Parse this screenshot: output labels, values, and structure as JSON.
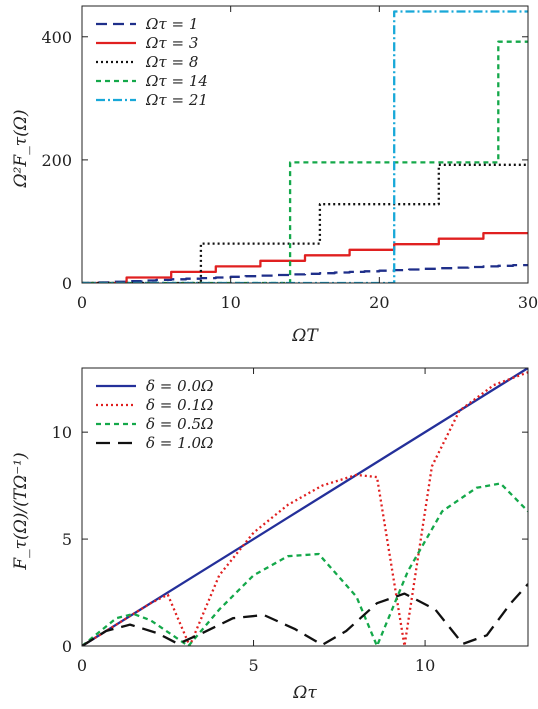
{
  "chart_data": [
    {
      "type": "line",
      "step": true,
      "xlabel": "ΩT",
      "ylabel": "Ω²F_τ(Ω)",
      "xlim": [
        0,
        30
      ],
      "ylim": [
        0,
        450
      ],
      "xticks": [
        0,
        10,
        20,
        30
      ],
      "yticks": [
        0,
        200,
        400
      ],
      "grid": false,
      "legend_position": "top-left",
      "series": [
        {
          "name": "Ωτ = 1",
          "color": "#1f2f8a",
          "dash": "dashed",
          "tau": 1,
          "x": [
            0,
            1,
            2,
            3,
            4,
            5,
            6,
            7,
            8,
            9,
            10,
            11,
            12,
            13,
            14,
            15,
            16,
            17,
            18,
            19,
            20,
            21,
            22,
            23,
            24,
            25,
            26,
            27,
            28,
            29,
            30
          ],
          "y": [
            0,
            1,
            2,
            3,
            4,
            5,
            6,
            7,
            8,
            9,
            10,
            11,
            12,
            13,
            14,
            15,
            16,
            17,
            18,
            19,
            20,
            21,
            22,
            23,
            24,
            25,
            26,
            27,
            28,
            29,
            30
          ]
        },
        {
          "name": "Ωτ = 3",
          "color": "#e02020",
          "dash": "solid",
          "tau": 3,
          "x": [
            0,
            3,
            6,
            9,
            12,
            15,
            18,
            21,
            24,
            27,
            30
          ],
          "y": [
            0,
            9,
            18,
            27,
            36,
            45,
            54,
            63,
            72,
            81,
            81
          ]
        },
        {
          "name": "Ωτ = 8",
          "color": "#111111",
          "dash": "dotted",
          "tau": 8,
          "x": [
            0,
            8,
            16,
            24,
            30
          ],
          "y": [
            0,
            64,
            128,
            192,
            192
          ]
        },
        {
          "name": "Ωτ = 14",
          "color": "#14a84a",
          "dash": "dashed-short",
          "tau": 14,
          "x": [
            0,
            14,
            28,
            30
          ],
          "y": [
            0,
            196,
            392,
            392
          ]
        },
        {
          "name": "Ωτ = 21",
          "color": "#18a8d8",
          "dash": "dashdot",
          "tau": 21,
          "x": [
            0,
            21,
            30
          ],
          "y": [
            0,
            441,
            441
          ]
        }
      ]
    },
    {
      "type": "line",
      "xlabel": "Ωτ",
      "ylabel": "F_τ(Ω)/(TΩ⁻¹)",
      "xlim": [
        0,
        13
      ],
      "ylim": [
        0,
        13
      ],
      "xticks": [
        0,
        5,
        10
      ],
      "yticks": [
        0,
        5,
        10
      ],
      "grid": false,
      "legend_position": "top-left",
      "series": [
        {
          "name": "δ = 0.0Ω",
          "color": "#24309a",
          "dash": "solid",
          "delta": 0.0,
          "x": [
            0,
            1.5,
            3,
            4.5,
            6,
            7.5,
            9,
            10.5,
            12,
            13
          ],
          "y": [
            0,
            1.5,
            3,
            4.5,
            6,
            7.5,
            9,
            10.5,
            12,
            13
          ]
        },
        {
          "name": "δ = 0.1Ω",
          "color": "#e02020",
          "dash": "dotted",
          "delta": 0.1,
          "x": [
            0,
            1,
            2,
            2.5,
            3.14,
            4,
            5,
            6,
            7,
            8,
            8.6,
            9.4,
            10.2,
            11,
            12,
            13
          ],
          "y": [
            0,
            1,
            2,
            2.4,
            0,
            3.3,
            5.3,
            6.6,
            7.5,
            8.0,
            7.9,
            0,
            8.4,
            11.0,
            12.2,
            12.8
          ]
        },
        {
          "name": "δ = 0.5Ω",
          "color": "#14a84a",
          "dash": "dashed-short",
          "delta": 0.5,
          "x": [
            0,
            1,
            1.5,
            2,
            3.1,
            4,
            5,
            6,
            6.9,
            8,
            8.6,
            9.5,
            10.5,
            11.5,
            12.2,
            13
          ],
          "y": [
            0,
            1.3,
            1.5,
            1.2,
            0,
            1.7,
            3.3,
            4.2,
            4.3,
            2.3,
            0,
            3.5,
            6.3,
            7.4,
            7.6,
            6.3
          ]
        },
        {
          "name": "δ = 1.0Ω",
          "color": "#111111",
          "dash": "long-dash",
          "delta": 1.0,
          "x": [
            0,
            0.7,
            1.4,
            2.2,
            2.8,
            3.5,
            4.4,
            5.3,
            6.2,
            7.0,
            7.7,
            8.6,
            9.4,
            10.3,
            11.1,
            11.8,
            12.5,
            13
          ],
          "y": [
            0,
            0.7,
            1.0,
            0.6,
            0.1,
            0.6,
            1.3,
            1.45,
            0.8,
            0.05,
            0.7,
            2.0,
            2.45,
            1.7,
            0.1,
            0.5,
            2.0,
            2.9
          ]
        }
      ]
    }
  ]
}
